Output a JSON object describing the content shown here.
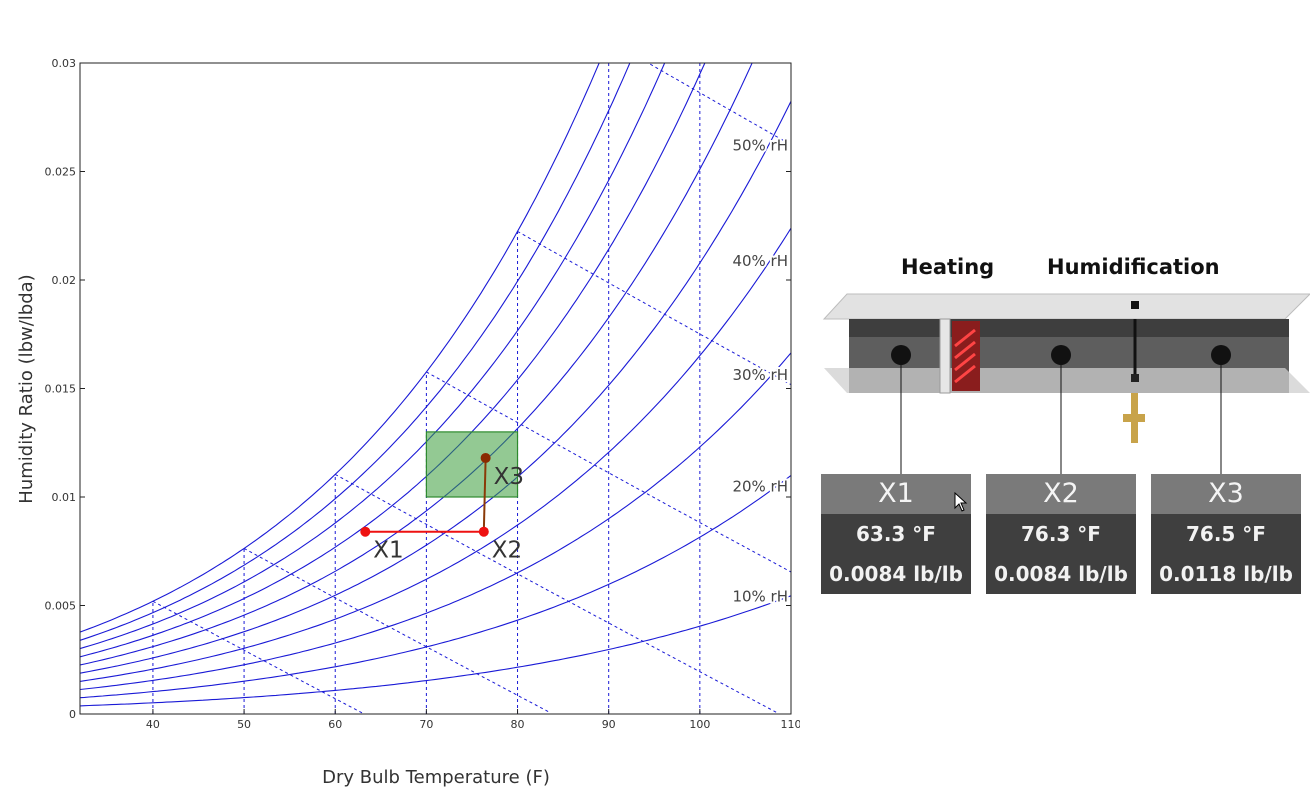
{
  "chart_data": {
    "type": "line",
    "title": "",
    "xlabel": "Dry Bulb Temperature (F)",
    "ylabel": "Humidity Ratio (lbw/lbda)",
    "xlim": [
      32,
      110
    ],
    "ylim": [
      0,
      0.03
    ],
    "x_ticks": [
      40,
      50,
      60,
      70,
      80,
      90,
      100,
      110
    ],
    "y_ticks": [
      0,
      0.005,
      0.01,
      0.015,
      0.02,
      0.025,
      0.03
    ],
    "x_tick_labels": [
      "40",
      "50",
      "60",
      "70",
      "80",
      "90",
      "100",
      "110"
    ],
    "y_tick_labels": [
      "0",
      "0.005",
      "0.01",
      "0.015",
      "0.02",
      "0.025",
      "0.03"
    ],
    "relative_humidity_curves": [
      0.1,
      0.2,
      0.3,
      0.4,
      0.5,
      0.6,
      0.7,
      0.8,
      0.9,
      1.0
    ],
    "rh_labels": [
      {
        "text": "10% rH",
        "rh": 0.1
      },
      {
        "text": "20% rH",
        "rh": 0.2
      },
      {
        "text": "30% rH",
        "rh": 0.3
      },
      {
        "text": "40% rH",
        "rh": 0.4
      },
      {
        "text": "50% rH",
        "rh": 0.5
      }
    ],
    "wet_bulb_lines": [
      40,
      50,
      60,
      70,
      80,
      90
    ],
    "grid": "dotted vertical lines at x ticks",
    "comfort_zone": {
      "x": [
        70,
        80
      ],
      "y": [
        0.01,
        0.013
      ],
      "color": "#3a9c3a"
    },
    "process_series": [
      {
        "from": "X1",
        "to": "X2",
        "color": "#ee1111"
      },
      {
        "from": "X2",
        "to": "X3",
        "color": "#8a3a08"
      }
    ],
    "points": [
      {
        "label": "X1",
        "x": 63.3,
        "y": 0.0084,
        "color": "#ee1111"
      },
      {
        "label": "X2",
        "x": 76.3,
        "y": 0.0084,
        "color": "#ee1111"
      },
      {
        "label": "X3",
        "x": 76.5,
        "y": 0.0118,
        "color": "#8a2a00"
      }
    ],
    "curve_color": "#1a1ad6"
  },
  "diagram": {
    "heating_label": "Heating",
    "humidification_label": "Humidification",
    "stations": [
      {
        "name": "X1",
        "temp": "63.3 °F",
        "ratio": "0.0084 lb/lb"
      },
      {
        "name": "X2",
        "temp": "76.3 °F",
        "ratio": "0.0084 lb/lb"
      },
      {
        "name": "X3",
        "temp": "76.5 °F",
        "ratio": "0.0118 lb/lb"
      }
    ]
  }
}
